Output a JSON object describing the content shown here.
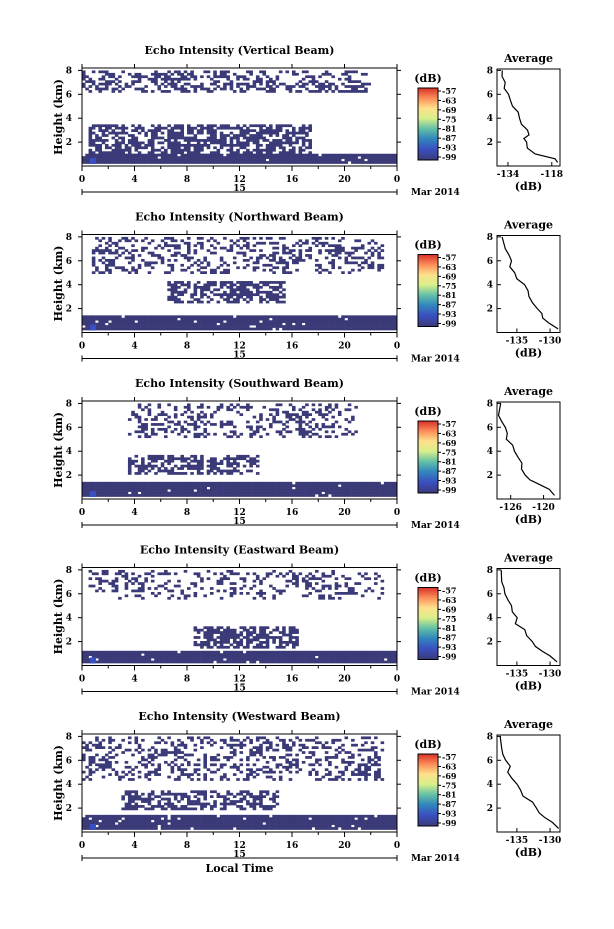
{
  "chart_data": [
    {
      "type": "heatmap",
      "title": "Echo Intensity (Vertical Beam)",
      "ylabel": "Height (km)",
      "yticks": [
        "2",
        "4",
        "6",
        "8"
      ],
      "xticks": [
        "0",
        "4",
        "8",
        "12",
        "16",
        "20",
        "0"
      ],
      "date_label": "15",
      "month_label": "Mar 2014",
      "colorbar_unit": "(dB)",
      "colorbar_ticks": [
        "-57",
        "-63",
        "-69",
        "-75",
        "-81",
        "-87",
        "-93",
        "-99"
      ],
      "layers": [
        {
          "x0": 0,
          "x1": 24,
          "h0": 0.25,
          "h1": 1.0,
          "density": 0.98
        },
        {
          "x0": 0.5,
          "x1": 17.5,
          "h0": 1.0,
          "h1": 3.4,
          "density": 0.62
        },
        {
          "x0": 0.2,
          "x1": 22,
          "h0": 6.3,
          "h1": 7.9,
          "density": 0.42
        }
      ],
      "avg": {
        "title": "Average",
        "xlabel": "(dB)",
        "xticks": [
          "-134",
          "-118"
        ],
        "xlim": [
          -138,
          -115
        ],
        "yticks": [
          "2",
          "4",
          "6",
          "8"
        ],
        "profile": [
          [
            0.3,
            -116
          ],
          [
            0.6,
            -117
          ],
          [
            1.0,
            -124
          ],
          [
            1.5,
            -127
          ],
          [
            2.0,
            -127
          ],
          [
            2.3,
            -128
          ],
          [
            2.6,
            -126
          ],
          [
            3.0,
            -127
          ],
          [
            3.5,
            -129
          ],
          [
            4.0,
            -130
          ],
          [
            4.5,
            -130
          ],
          [
            5.0,
            -132
          ],
          [
            5.5,
            -133
          ],
          [
            6.0,
            -134
          ],
          [
            6.5,
            -135
          ],
          [
            7.0,
            -135
          ],
          [
            7.5,
            -136
          ],
          [
            8.0,
            -136
          ]
        ]
      }
    },
    {
      "type": "heatmap",
      "title": "Echo Intensity (Northward Beam)",
      "ylabel": "Height (km)",
      "yticks": [
        "2",
        "4",
        "6",
        "8"
      ],
      "xticks": [
        "0",
        "4",
        "8",
        "12",
        "16",
        "20",
        "0"
      ],
      "date_label": "15",
      "month_label": "Mar 2014",
      "colorbar_unit": "(dB)",
      "colorbar_ticks": [
        "-57",
        "-63",
        "-69",
        "-75",
        "-81",
        "-87",
        "-93",
        "-99"
      ],
      "layers": [
        {
          "x0": 0,
          "x1": 24,
          "h0": 0.25,
          "h1": 1.3,
          "density": 0.97
        },
        {
          "x0": 6.5,
          "x1": 15.5,
          "h0": 2.5,
          "h1": 4.2,
          "density": 0.6
        },
        {
          "x0": 0.5,
          "x1": 23,
          "h0": 5.0,
          "h1": 7.9,
          "density": 0.3
        }
      ],
      "avg": {
        "title": "Average",
        "xlabel": "(dB)",
        "xticks": [
          "-135",
          "-130"
        ],
        "xlim": [
          -138,
          -128.5
        ],
        "yticks": [
          "2",
          "4",
          "6",
          "8"
        ],
        "profile": [
          [
            0.3,
            -129
          ],
          [
            0.8,
            -130
          ],
          [
            1.2,
            -131
          ],
          [
            1.6,
            -131.5
          ],
          [
            2.0,
            -132
          ],
          [
            2.5,
            -132.5
          ],
          [
            3.0,
            -133
          ],
          [
            3.5,
            -133.5
          ],
          [
            4.0,
            -134
          ],
          [
            4.5,
            -135
          ],
          [
            5.0,
            -135.5
          ],
          [
            5.5,
            -136
          ],
          [
            6.0,
            -136
          ],
          [
            6.5,
            -136.5
          ],
          [
            7.0,
            -137
          ],
          [
            8.0,
            -137
          ]
        ]
      }
    },
    {
      "type": "heatmap",
      "title": "Echo Intensity (Southward Beam)",
      "ylabel": "Height (km)",
      "yticks": [
        "2",
        "4",
        "6",
        "8"
      ],
      "xticks": [
        "0",
        "4",
        "8",
        "12",
        "16",
        "20",
        "0"
      ],
      "date_label": "15",
      "month_label": "Mar 2014",
      "colorbar_unit": "(dB)",
      "colorbar_ticks": [
        "-57",
        "-63",
        "-69",
        "-75",
        "-81",
        "-87",
        "-93",
        "-99"
      ],
      "layers": [
        {
          "x0": 0,
          "x1": 24,
          "h0": 0.25,
          "h1": 1.3,
          "density": 0.97
        },
        {
          "x0": 3.5,
          "x1": 13.5,
          "h0": 2.2,
          "h1": 3.6,
          "density": 0.55
        },
        {
          "x0": 3.5,
          "x1": 21,
          "h0": 5.2,
          "h1": 7.9,
          "density": 0.3
        }
      ],
      "avg": {
        "title": "Average",
        "xlabel": "(dB)",
        "xticks": [
          "-126",
          "-120"
        ],
        "xlim": [
          -128.5,
          -117
        ],
        "yticks": [
          "2",
          "4",
          "6",
          "8"
        ],
        "profile": [
          [
            0.3,
            -118
          ],
          [
            0.8,
            -119
          ],
          [
            1.2,
            -121
          ],
          [
            1.6,
            -122.5
          ],
          [
            2.0,
            -123
          ],
          [
            2.5,
            -124
          ],
          [
            3.0,
            -124
          ],
          [
            3.5,
            -124.5
          ],
          [
            4.0,
            -125
          ],
          [
            4.5,
            -126
          ],
          [
            5.0,
            -126.5
          ],
          [
            5.5,
            -127
          ],
          [
            6.0,
            -127
          ],
          [
            6.5,
            -127.5
          ],
          [
            7.0,
            -128
          ],
          [
            8.0,
            -128
          ]
        ]
      }
    },
    {
      "type": "heatmap",
      "title": "Echo Intensity (Eastward Beam)",
      "ylabel": "Height (km)",
      "yticks": [
        "2",
        "4",
        "6",
        "8"
      ],
      "xticks": [
        "0",
        "4",
        "8",
        "12",
        "16",
        "20",
        "0"
      ],
      "date_label": "15",
      "month_label": "Mar 2014",
      "colorbar_unit": "(dB)",
      "colorbar_ticks": [
        "-57",
        "-63",
        "-69",
        "-75",
        "-81",
        "-87",
        "-93",
        "-99"
      ],
      "layers": [
        {
          "x0": 0,
          "x1": 24,
          "h0": 0.25,
          "h1": 1.1,
          "density": 0.96
        },
        {
          "x0": 8.5,
          "x1": 16.5,
          "h0": 1.5,
          "h1": 3.1,
          "density": 0.6
        },
        {
          "x0": 0.5,
          "x1": 23,
          "h0": 5.6,
          "h1": 7.9,
          "density": 0.28
        }
      ],
      "avg": {
        "title": "Average",
        "xlabel": "(dB)",
        "xticks": [
          "-135",
          "-130"
        ],
        "xlim": [
          -138,
          -128.5
        ],
        "yticks": [
          "2",
          "4",
          "6",
          "8"
        ],
        "profile": [
          [
            0.3,
            -129
          ],
          [
            0.8,
            -130
          ],
          [
            1.2,
            -131.5
          ],
          [
            1.6,
            -132
          ],
          [
            2.0,
            -133
          ],
          [
            2.5,
            -133.5
          ],
          [
            3.0,
            -134
          ],
          [
            3.5,
            -135
          ],
          [
            4.0,
            -135
          ],
          [
            4.5,
            -135.5
          ],
          [
            5.0,
            -136
          ],
          [
            5.5,
            -136
          ],
          [
            6.0,
            -136.5
          ],
          [
            6.5,
            -137
          ],
          [
            7.0,
            -137
          ],
          [
            8.0,
            -137.5
          ]
        ]
      }
    },
    {
      "type": "heatmap",
      "title": "Echo Intensity (Westward Beam)",
      "ylabel": "Height (km)",
      "yticks": [
        "2",
        "4",
        "6",
        "8"
      ],
      "xticks": [
        "0",
        "4",
        "8",
        "12",
        "16",
        "20",
        "0"
      ],
      "date_label": "15",
      "month_label": "Mar 2014",
      "xlabel": "Local Time",
      "colorbar_unit": "(dB)",
      "colorbar_ticks": [
        "-57",
        "-63",
        "-69",
        "-75",
        "-81",
        "-87",
        "-93",
        "-99"
      ],
      "layers": [
        {
          "x0": 0,
          "x1": 24,
          "h0": 0.25,
          "h1": 1.4,
          "density": 0.97
        },
        {
          "x0": 3.0,
          "x1": 15.0,
          "h0": 2.0,
          "h1": 3.3,
          "density": 0.55
        },
        {
          "x0": 0.2,
          "x1": 23,
          "h0": 4.5,
          "h1": 7.9,
          "density": 0.33
        }
      ],
      "avg": {
        "title": "Average",
        "xlabel": "(dB)",
        "xticks": [
          "-135",
          "-130"
        ],
        "xlim": [
          -138,
          -128.5
        ],
        "yticks": [
          "2",
          "4",
          "6",
          "8"
        ],
        "profile": [
          [
            0.3,
            -128.5
          ],
          [
            0.8,
            -130
          ],
          [
            1.2,
            -131
          ],
          [
            1.6,
            -131.5
          ],
          [
            2.0,
            -132
          ],
          [
            2.5,
            -133
          ],
          [
            3.0,
            -134
          ],
          [
            3.5,
            -134.5
          ],
          [
            4.0,
            -135
          ],
          [
            4.5,
            -135.5
          ],
          [
            5.0,
            -136
          ],
          [
            5.5,
            -136
          ],
          [
            6.0,
            -136.5
          ],
          [
            6.5,
            -137
          ],
          [
            7.0,
            -137
          ],
          [
            8.0,
            -137.5
          ]
        ]
      }
    }
  ],
  "colors": {
    "echo_fill": "#3b3a78",
    "colorbar": [
      "#d73027",
      "#fc8d59",
      "#fee08b",
      "#d9ef8b",
      "#91cf60",
      "#66c2a5",
      "#3288bd",
      "#3a4fc0",
      "#3b3a78"
    ]
  }
}
